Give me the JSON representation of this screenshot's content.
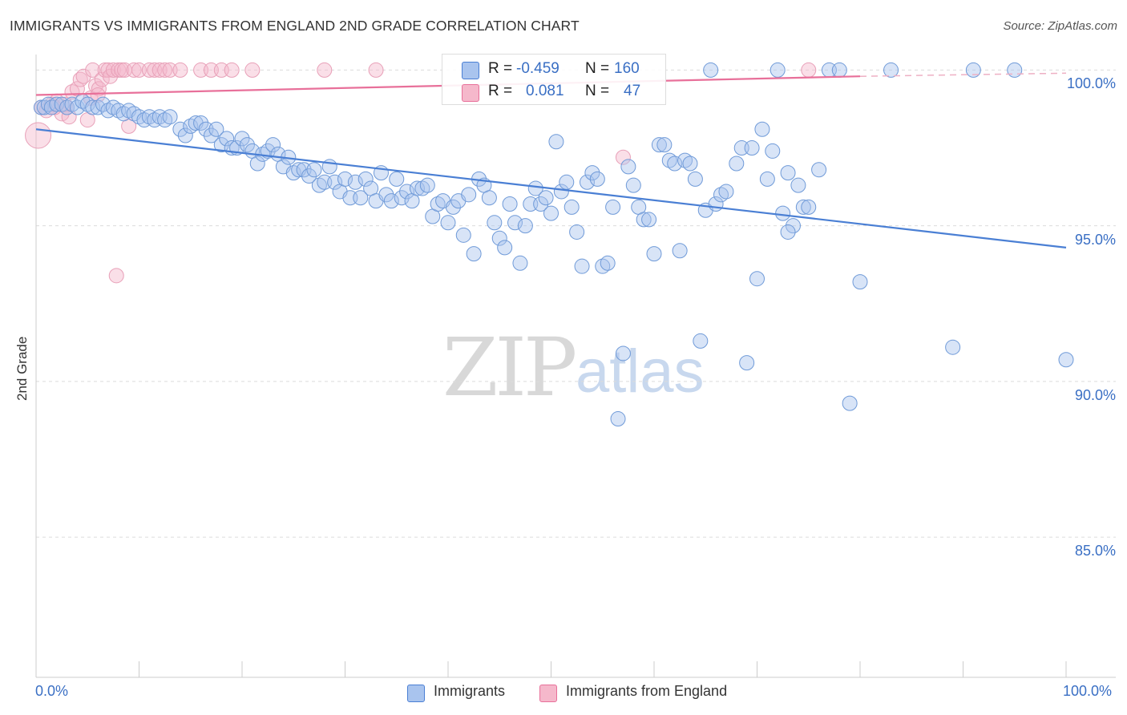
{
  "header": {
    "title": "IMMIGRANTS VS IMMIGRANTS FROM ENGLAND 2ND GRADE CORRELATION CHART",
    "source": "Source: ZipAtlas.com"
  },
  "watermark": {
    "zip": "ZIP",
    "atlas": "atlas"
  },
  "colors": {
    "blue": "#4a7fd4",
    "blue_fill": "#a9c4ee",
    "pink": "#e8709a",
    "pink_fill": "#f5b8cb",
    "axis_label": "#3a6fc4"
  },
  "legend_top": {
    "row1": {
      "r_label": "R =",
      "r_value": "-0.459",
      "n_label": "N =",
      "n_value": "160"
    },
    "row2": {
      "r_label": "R =",
      "r_value": "0.081",
      "n_label": "N =",
      "n_value": "47"
    }
  },
  "legend_bottom": {
    "series1": "Immigrants",
    "series2": "Immigrants from England"
  },
  "chart_data": {
    "type": "scatter",
    "title": "IMMIGRANTS VS IMMIGRANTS FROM ENGLAND 2ND GRADE CORRELATION CHART",
    "xlabel": "",
    "ylabel": "2nd Grade",
    "xlim": [
      0,
      100
    ],
    "ylim": [
      80.5,
      100.5
    ],
    "x_tick_labels": [
      "0.0%",
      "100.0%"
    ],
    "y_ticks": [
      85,
      90,
      95,
      100
    ],
    "y_tick_labels": [
      "85.0%",
      "90.0%",
      "95.0%",
      "100.0%"
    ],
    "grid": "horizontal dashed",
    "legend_placement": "bottom-center",
    "series": [
      {
        "name": "Immigrants",
        "color": "#4a7fd4",
        "trend": {
          "x": [
            0,
            100
          ],
          "y": [
            98.1,
            94.3
          ]
        },
        "points": [
          [
            0.5,
            98.8
          ],
          [
            0.8,
            98.8
          ],
          [
            1.2,
            98.9
          ],
          [
            1.5,
            98.8
          ],
          [
            2,
            98.9
          ],
          [
            2.5,
            98.9
          ],
          [
            3,
            98.8
          ],
          [
            3.5,
            98.9
          ],
          [
            4,
            98.8
          ],
          [
            4.5,
            99
          ],
          [
            5,
            98.9
          ],
          [
            5.5,
            98.8
          ],
          [
            6,
            98.8
          ],
          [
            6.5,
            98.9
          ],
          [
            7,
            98.7
          ],
          [
            7.5,
            98.8
          ],
          [
            8,
            98.7
          ],
          [
            8.5,
            98.6
          ],
          [
            9,
            98.7
          ],
          [
            9.5,
            98.6
          ],
          [
            10,
            98.5
          ],
          [
            10.5,
            98.4
          ],
          [
            11,
            98.5
          ],
          [
            11.5,
            98.4
          ],
          [
            12,
            98.5
          ],
          [
            12.5,
            98.4
          ],
          [
            13,
            98.5
          ],
          [
            14,
            98.1
          ],
          [
            14.5,
            97.9
          ],
          [
            15,
            98.2
          ],
          [
            15.5,
            98.3
          ],
          [
            16,
            98.3
          ],
          [
            16.5,
            98.1
          ],
          [
            17,
            97.9
          ],
          [
            17.5,
            98.1
          ],
          [
            18,
            97.6
          ],
          [
            18.5,
            97.8
          ],
          [
            19,
            97.5
          ],
          [
            19.5,
            97.5
          ],
          [
            20,
            97.8
          ],
          [
            20.5,
            97.6
          ],
          [
            21,
            97.4
          ],
          [
            21.5,
            97.0
          ],
          [
            22,
            97.3
          ],
          [
            22.5,
            97.4
          ],
          [
            23,
            97.6
          ],
          [
            23.5,
            97.3
          ],
          [
            24,
            96.9
          ],
          [
            24.5,
            97.2
          ],
          [
            25,
            96.7
          ],
          [
            25.5,
            96.8
          ],
          [
            26,
            96.8
          ],
          [
            26.5,
            96.6
          ],
          [
            27,
            96.8
          ],
          [
            27.5,
            96.3
          ],
          [
            28,
            96.4
          ],
          [
            28.5,
            96.9
          ],
          [
            29,
            96.4
          ],
          [
            29.5,
            96.1
          ],
          [
            30,
            96.5
          ],
          [
            30.5,
            95.9
          ],
          [
            31,
            96.4
          ],
          [
            31.5,
            95.9
          ],
          [
            32,
            96.5
          ],
          [
            32.5,
            96.2
          ],
          [
            33,
            95.8
          ],
          [
            33.5,
            96.7
          ],
          [
            34,
            96.0
          ],
          [
            34.5,
            95.8
          ],
          [
            35,
            96.5
          ],
          [
            35.5,
            95.9
          ],
          [
            36,
            96.1
          ],
          [
            36.5,
            95.8
          ],
          [
            37,
            96.2
          ],
          [
            37.5,
            96.2
          ],
          [
            38,
            96.3
          ],
          [
            38.5,
            95.3
          ],
          [
            39,
            95.7
          ],
          [
            39.5,
            95.8
          ],
          [
            40,
            95.1
          ],
          [
            40.5,
            95.6
          ],
          [
            41,
            95.8
          ],
          [
            41.5,
            94.7
          ],
          [
            42,
            96.0
          ],
          [
            42.5,
            94.1
          ],
          [
            43,
            96.5
          ],
          [
            43.5,
            96.3
          ],
          [
            44,
            95.9
          ],
          [
            44.5,
            95.1
          ],
          [
            45,
            94.6
          ],
          [
            45.5,
            94.3
          ],
          [
            46,
            95.7
          ],
          [
            46.5,
            95.1
          ],
          [
            47,
            93.8
          ],
          [
            47.5,
            95.0
          ],
          [
            48,
            95.7
          ],
          [
            48.5,
            96.2
          ],
          [
            49,
            95.7
          ],
          [
            49.5,
            95.9
          ],
          [
            50,
            95.4
          ],
          [
            50.5,
            97.7
          ],
          [
            51,
            96.1
          ],
          [
            51.5,
            96.4
          ],
          [
            52,
            95.6
          ],
          [
            52.5,
            94.8
          ],
          [
            53,
            93.7
          ],
          [
            53.5,
            96.4
          ],
          [
            54,
            96.7
          ],
          [
            54.5,
            96.5
          ],
          [
            55,
            93.7
          ],
          [
            55.5,
            93.8
          ],
          [
            56,
            95.6
          ],
          [
            56.5,
            88.8
          ],
          [
            57,
            90.9
          ],
          [
            57.5,
            96.9
          ],
          [
            58,
            96.3
          ],
          [
            58.5,
            95.6
          ],
          [
            59,
            95.2
          ],
          [
            59.5,
            95.2
          ],
          [
            60,
            94.1
          ],
          [
            60.5,
            97.6
          ],
          [
            61,
            97.6
          ],
          [
            61.5,
            97.1
          ],
          [
            62,
            97.0
          ],
          [
            62.5,
            94.2
          ],
          [
            63,
            97.1
          ],
          [
            63.5,
            97.0
          ],
          [
            64,
            96.5
          ],
          [
            64.5,
            91.3
          ],
          [
            65,
            95.5
          ],
          [
            65.5,
            100
          ],
          [
            66,
            95.7
          ],
          [
            66.5,
            96.0
          ],
          [
            67,
            96.1
          ],
          [
            68,
            97.0
          ],
          [
            68.5,
            97.5
          ],
          [
            69,
            90.6
          ],
          [
            69.5,
            97.5
          ],
          [
            70,
            93.3
          ],
          [
            70.5,
            98.1
          ],
          [
            71,
            96.5
          ],
          [
            71.5,
            97.4
          ],
          [
            72,
            100
          ],
          [
            72.5,
            95.4
          ],
          [
            73,
            96.7
          ],
          [
            73.5,
            95.0
          ],
          [
            74,
            96.3
          ],
          [
            74.5,
            95.6
          ],
          [
            75,
            95.6
          ],
          [
            76,
            96.8
          ],
          [
            77,
            100
          ],
          [
            78,
            100
          ],
          [
            79,
            89.3
          ],
          [
            80,
            93.2
          ],
          [
            83,
            100
          ],
          [
            89,
            91.1
          ],
          [
            91,
            100
          ],
          [
            95,
            100
          ],
          [
            100,
            90.7
          ],
          [
            73,
            94.8
          ]
        ]
      },
      {
        "name": "Immigrants from England",
        "color": "#e8709a",
        "trend": {
          "x": [
            0,
            80
          ],
          "y": [
            99.2,
            99.8
          ]
        },
        "trend_dashed": {
          "x": [
            80,
            100
          ],
          "y": [
            99.8,
            99.9
          ]
        },
        "points": [
          [
            0.2,
            97.9
          ],
          [
            0.5,
            98.8
          ],
          [
            1,
            98.7
          ],
          [
            1.5,
            98.9
          ],
          [
            2,
            99.0
          ],
          [
            2.5,
            98.6
          ],
          [
            3,
            98.8
          ],
          [
            3.5,
            99.3
          ],
          [
            4,
            99.4
          ],
          [
            4.3,
            99.7
          ],
          [
            4.6,
            99.8
          ],
          [
            5,
            98.4
          ],
          [
            5.3,
            99.1
          ],
          [
            5.5,
            100
          ],
          [
            5.8,
            99.5
          ],
          [
            6.1,
            99.4
          ],
          [
            6.4,
            99.7
          ],
          [
            6.7,
            100
          ],
          [
            7,
            100
          ],
          [
            7.2,
            99.8
          ],
          [
            7.5,
            100
          ],
          [
            7.8,
            93.4
          ],
          [
            8,
            100
          ],
          [
            8.3,
            100
          ],
          [
            8.6,
            100
          ],
          [
            9,
            98.2
          ],
          [
            9.5,
            100
          ],
          [
            10,
            100
          ],
          [
            11,
            100
          ],
          [
            11.5,
            100
          ],
          [
            12,
            100
          ],
          [
            12.5,
            100
          ],
          [
            13,
            100
          ],
          [
            14,
            100
          ],
          [
            16,
            100
          ],
          [
            17,
            100
          ],
          [
            18,
            100
          ],
          [
            19,
            100
          ],
          [
            21,
            100
          ],
          [
            28,
            100
          ],
          [
            33,
            100
          ],
          [
            57,
            97.2
          ],
          [
            75,
            100
          ],
          [
            3.2,
            98.5
          ],
          [
            2.8,
            98.9
          ],
          [
            1.8,
            98.8
          ],
          [
            6.0,
            99.2
          ]
        ]
      }
    ]
  }
}
